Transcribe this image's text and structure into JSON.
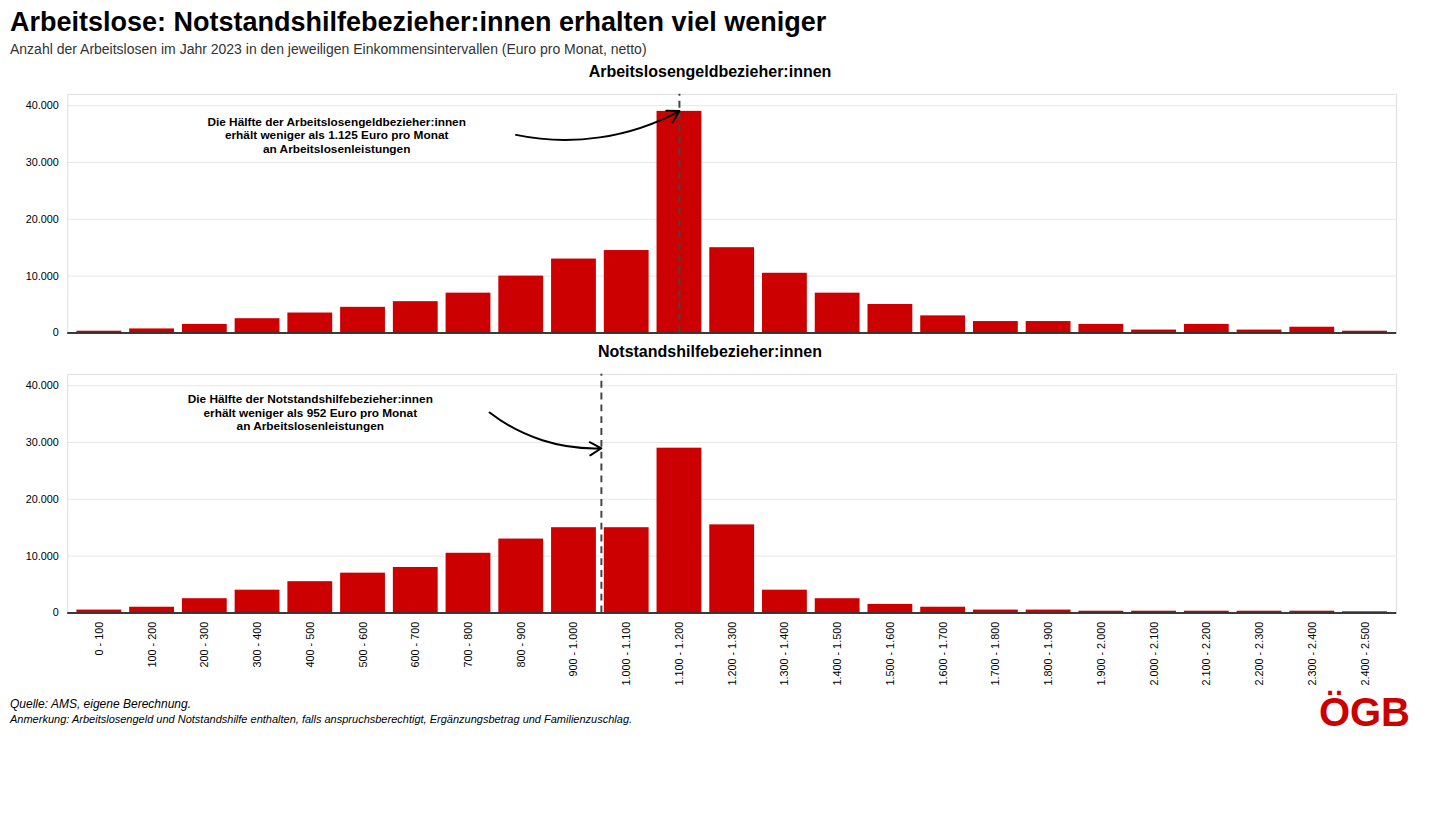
{
  "title": "Arbeitslose: Notstandshilfebezieher:innen erhalten viel weniger",
  "subtitle": "Anzahl der Arbeitslosen im Jahr 2023 in den jeweiligen Einkommensintervallen (Euro pro Monat, netto)",
  "source": "Quelle: AMS, eigene Berechnung.",
  "note": "Anmerkung: Arbeitslosengeld und Notstandshilfe enthalten, falls anspruchsberechtigt, Ergänzungsbetrag und Familienzuschlag.",
  "logo": {
    "text": "ÖGB",
    "color": "#CC0000"
  },
  "chart_data": [
    {
      "type": "bar",
      "title": "Arbeitslosengeldbezieher:innen",
      "categories": [
        "0 - 100",
        "100 - 200",
        "200 - 300",
        "300 - 400",
        "400 - 500",
        "500 - 600",
        "600 - 700",
        "700 - 800",
        "800 - 900",
        "900 - 1.000",
        "1.000 - 1.100",
        "1.100 - 1.200",
        "1.200 - 1.300",
        "1.300 - 1.400",
        "1.400 - 1.500",
        "1.500 - 1.600",
        "1.600 - 1.700",
        "1.700 - 1.800",
        "1.800 - 1.900",
        "1.900 - 2.000",
        "2.000 - 2.100",
        "2.100 - 2.200",
        "2.200 - 2.300",
        "2.300 - 2.400",
        "2.400 - 2.500"
      ],
      "values": [
        300,
        700,
        1500,
        2500,
        3500,
        4500,
        5500,
        7000,
        10000,
        13000,
        14500,
        39000,
        15000,
        10500,
        7000,
        5000,
        3000,
        2000,
        2000,
        1500,
        500,
        1500,
        500,
        1000,
        300
      ],
      "color": "#CC0000",
      "ylim": [
        0,
        42000
      ],
      "yticks": [
        0,
        {
          "value": 10000,
          "label": "10.000"
        },
        {
          "value": 20000,
          "label": "20.000"
        },
        {
          "value": 30000,
          "label": "30.000"
        },
        {
          "value": 40000,
          "label": "40.000"
        }
      ],
      "grid": true,
      "tick_labels": "y",
      "annotations": [
        {
          "text": "Die Hälfte der Arbeitslosengeldbezieher:innen\nerhält weniger als 1.125 Euro pro Monat\nan Arbeitslosenleistungen",
          "x": 11.0
        }
      ]
    },
    {
      "type": "bar",
      "title": "Notstandshilfebezieher:innen",
      "categories": [
        "0 - 100",
        "100 - 200",
        "200 - 300",
        "300 - 400",
        "400 - 500",
        "500 - 600",
        "600 - 700",
        "700 - 800",
        "800 - 900",
        "900 - 1.000",
        "1.000 - 1.100",
        "1.100 - 1.200",
        "1.200 - 1.300",
        "1.300 - 1.400",
        "1.400 - 1.500",
        "1.500 - 1.600",
        "1.600 - 1.700",
        "1.700 - 1.800",
        "1.800 - 1.900",
        "1.900 - 2.000",
        "2.000 - 2.100",
        "2.100 - 2.200",
        "2.200 - 2.300",
        "2.300 - 2.400",
        "2.400 - 2.500"
      ],
      "values": [
        500,
        1000,
        2500,
        4000,
        5500,
        7000,
        8000,
        10500,
        13000,
        15000,
        15000,
        29000,
        15500,
        4000,
        2500,
        1500,
        1000,
        500,
        500,
        300,
        300,
        300,
        300,
        300,
        200
      ],
      "color": "#CC0000",
      "ylim": [
        0,
        42000
      ],
      "yticks": [
        0,
        {
          "value": 10000,
          "label": "10.000"
        },
        {
          "value": 20000,
          "label": "20.000"
        },
        {
          "value": 30000,
          "label": "30.000"
        },
        {
          "value": 40000,
          "label": "40.000"
        }
      ],
      "grid": true,
      "annotations": [
        {
          "text": "Die Hälfte der Notstandshilfebezieher:innen\nerhält weniger als 952 Euro pro Monat\nan Arbeitslosenleistungen",
          "x": 9.52
        }
      ]
    }
  ]
}
